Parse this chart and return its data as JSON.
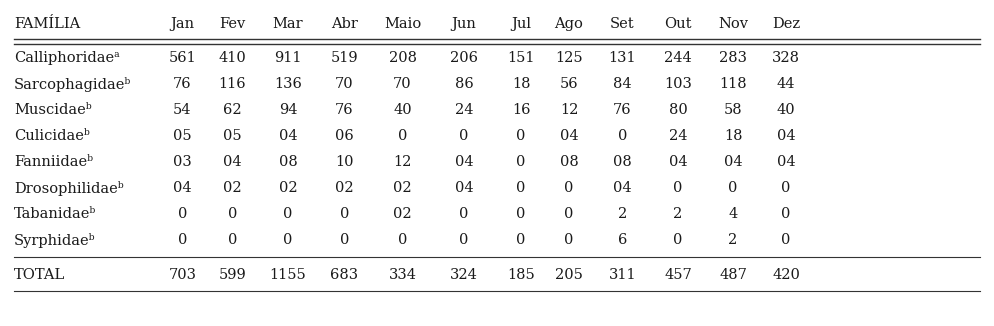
{
  "columns": [
    "FAMÍLIA",
    "Jan",
    "Fev",
    "Mar",
    "Abr",
    "Maio",
    "Jun",
    "Jul",
    "Ago",
    "Set",
    "Out",
    "Nov",
    "Dez"
  ],
  "rows": [
    [
      "Calliphoridaeᵃ",
      "561",
      "410",
      "911",
      "519",
      "208",
      "206",
      "151",
      "125",
      "131",
      "244",
      "283",
      "328"
    ],
    [
      "Sarcophagidaeᵇ",
      "76",
      "116",
      "136",
      "70",
      "70",
      "86",
      "18",
      "56",
      "84",
      "103",
      "118",
      "44"
    ],
    [
      "Muscidaeᵇ",
      "54",
      "62",
      "94",
      "76",
      "40",
      "24",
      "16",
      "12",
      "76",
      "80",
      "58",
      "40"
    ],
    [
      "Culicidaeᵇ",
      "05",
      "05",
      "04",
      "06",
      "0",
      "0",
      "0",
      "04",
      "0",
      "24",
      "18",
      "04"
    ],
    [
      "Fanniidaeᵇ",
      "03",
      "04",
      "08",
      "10",
      "12",
      "04",
      "0",
      "08",
      "08",
      "04",
      "04",
      "04"
    ],
    [
      "Drosophilidaeᵇ",
      "04",
      "02",
      "02",
      "02",
      "02",
      "04",
      "0",
      "0",
      "04",
      "0",
      "0",
      "0"
    ],
    [
      "Tabanidaeᵇ",
      "0",
      "0",
      "0",
      "0",
      "02",
      "0",
      "0",
      "0",
      "2",
      "2",
      "4",
      "0"
    ],
    [
      "Syrphidaeᵇ",
      "0",
      "0",
      "0",
      "0",
      "0",
      "0",
      "0",
      "0",
      "6",
      "0",
      "2",
      "0"
    ]
  ],
  "total_row": [
    "TOTAL",
    "703",
    "599",
    "1155",
    "683",
    "334",
    "324",
    "185",
    "205",
    "311",
    "457",
    "487",
    "420"
  ],
  "bg_color": "#ffffff",
  "text_color": "#1a1a1a",
  "font_size": 10.5,
  "line_color": "#333333"
}
